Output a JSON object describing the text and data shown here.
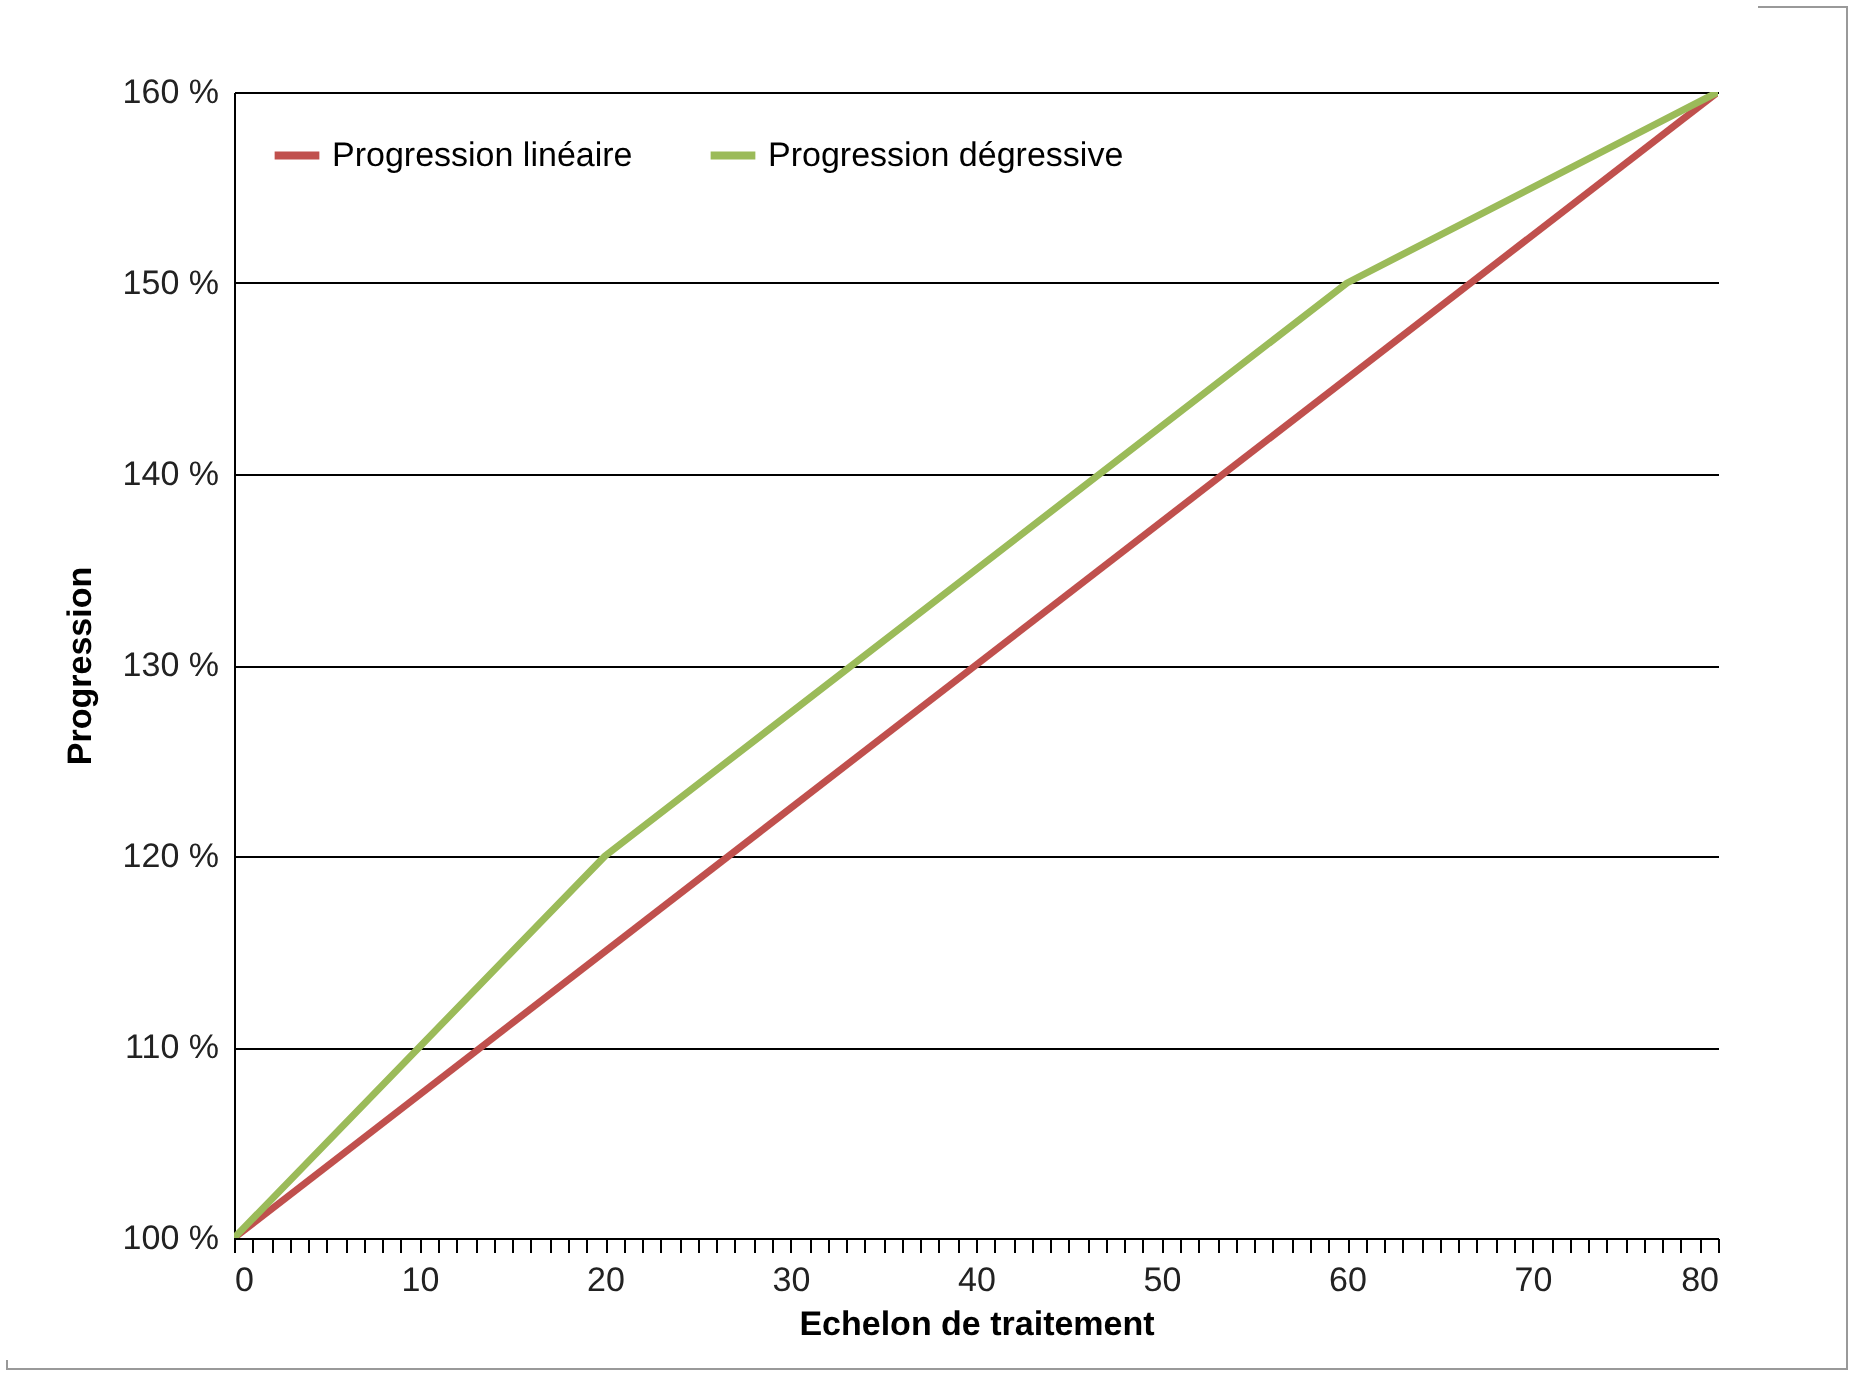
{
  "chart_data": {
    "type": "line",
    "xlabel": "Echelon de traitement",
    "ylabel": "Progression",
    "series": [
      {
        "name": "Progression linéaire",
        "color": "#c0504d",
        "x": [
          0,
          80
        ],
        "values": [
          100,
          160
        ]
      },
      {
        "name": "Progression dégressive",
        "color": "#9bbb59",
        "x": [
          0,
          20,
          60,
          80
        ],
        "values": [
          100,
          120,
          150,
          160
        ]
      }
    ],
    "xlim": [
      0,
      80
    ],
    "xticks": [
      0,
      {
        "value": 1,
        "label": null
      },
      {
        "value": 2,
        "label": null
      },
      {
        "value": 3,
        "label": null
      },
      {
        "value": 4,
        "label": null
      },
      {
        "value": 5,
        "label": null
      },
      {
        "value": 6,
        "label": null
      },
      {
        "value": 7,
        "label": null
      },
      {
        "value": 8,
        "label": null
      },
      {
        "value": 9,
        "label": null
      },
      10,
      {
        "value": 11,
        "label": null
      },
      {
        "value": 12,
        "label": null
      },
      {
        "value": 13,
        "label": null
      },
      {
        "value": 14,
        "label": null
      },
      {
        "value": 15,
        "label": null
      },
      {
        "value": 16,
        "label": null
      },
      {
        "value": 17,
        "label": null
      },
      {
        "value": 18,
        "label": null
      },
      {
        "value": 19,
        "label": null
      },
      20,
      {
        "value": 21,
        "label": null
      },
      {
        "value": 22,
        "label": null
      },
      {
        "value": 23,
        "label": null
      },
      {
        "value": 24,
        "label": null
      },
      {
        "value": 25,
        "label": null
      },
      {
        "value": 26,
        "label": null
      },
      {
        "value": 27,
        "label": null
      },
      {
        "value": 28,
        "label": null
      },
      {
        "value": 29,
        "label": null
      },
      30,
      {
        "value": 31,
        "label": null
      },
      {
        "value": 32,
        "label": null
      },
      {
        "value": 33,
        "label": null
      },
      {
        "value": 34,
        "label": null
      },
      {
        "value": 35,
        "label": null
      },
      {
        "value": 36,
        "label": null
      },
      {
        "value": 37,
        "label": null
      },
      {
        "value": 38,
        "label": null
      },
      {
        "value": 39,
        "label": null
      },
      40,
      {
        "value": 41,
        "label": null
      },
      {
        "value": 42,
        "label": null
      },
      {
        "value": 43,
        "label": null
      },
      {
        "value": 44,
        "label": null
      },
      {
        "value": 45,
        "label": null
      },
      {
        "value": 46,
        "label": null
      },
      {
        "value": 47,
        "label": null
      },
      {
        "value": 48,
        "label": null
      },
      {
        "value": 49,
        "label": null
      },
      50,
      {
        "value": 51,
        "label": null
      },
      {
        "value": 52,
        "label": null
      },
      {
        "value": 53,
        "label": null
      },
      {
        "value": 54,
        "label": null
      },
      {
        "value": 55,
        "label": null
      },
      {
        "value": 56,
        "label": null
      },
      {
        "value": 57,
        "label": null
      },
      {
        "value": 58,
        "label": null
      },
      {
        "value": 59,
        "label": null
      },
      60,
      {
        "value": 61,
        "label": null
      },
      {
        "value": 62,
        "label": null
      },
      {
        "value": 63,
        "label": null
      },
      {
        "value": 64,
        "label": null
      },
      {
        "value": 65,
        "label": null
      },
      {
        "value": 66,
        "label": null
      },
      {
        "value": 67,
        "label": null
      },
      {
        "value": 68,
        "label": null
      },
      {
        "value": 69,
        "label": null
      },
      70,
      {
        "value": 71,
        "label": null
      },
      {
        "value": 72,
        "label": null
      },
      {
        "value": 73,
        "label": null
      },
      {
        "value": 74,
        "label": null
      },
      {
        "value": 75,
        "label": null
      },
      {
        "value": 76,
        "label": null
      },
      {
        "value": 77,
        "label": null
      },
      {
        "value": 78,
        "label": null
      },
      {
        "value": 79,
        "label": null
      },
      80
    ],
    "ylim": [
      100,
      160
    ],
    "yticks": [
      {
        "value": 100,
        "label": "100 %"
      },
      {
        "value": 110,
        "label": "110 %"
      },
      {
        "value": 120,
        "label": "120 %"
      },
      {
        "value": 130,
        "label": "130 %"
      },
      {
        "value": 140,
        "label": "140 %"
      },
      {
        "value": 150,
        "label": "150 %"
      },
      {
        "value": 160,
        "label": "160 %"
      }
    ],
    "grid": "y",
    "legend": "top left",
    "marker": "none",
    "line_style": "solid"
  }
}
